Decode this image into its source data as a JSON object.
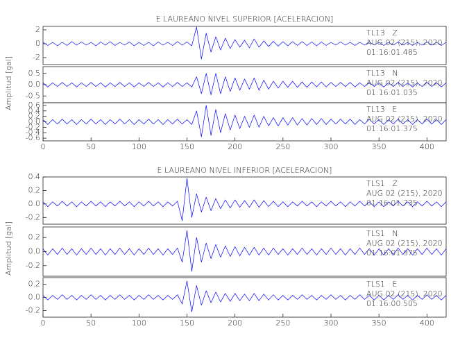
{
  "chart_data": [
    {
      "type": "line",
      "title": "E LAUREANO NIVEL SUPERIOR [ACELERACION]",
      "ylabel": "Amplitud [gal]",
      "xlim": [
        0,
        420
      ],
      "xticks": [
        0,
        50,
        100,
        150,
        200,
        250,
        300,
        350,
        400
      ],
      "x": [
        0,
        5,
        10,
        15,
        20,
        25,
        30,
        35,
        40,
        45,
        50,
        55,
        60,
        65,
        70,
        75,
        80,
        85,
        90,
        95,
        100,
        105,
        110,
        115,
        120,
        125,
        130,
        135,
        140,
        145,
        150,
        155,
        160,
        165,
        170,
        175,
        180,
        185,
        190,
        195,
        200,
        205,
        210,
        215,
        220,
        225,
        230,
        235,
        240,
        245,
        250,
        255,
        260,
        265,
        270,
        275,
        280,
        285,
        290,
        295,
        300,
        305,
        310,
        315,
        320,
        325,
        330,
        335,
        340,
        345,
        350,
        355,
        360,
        365,
        370,
        375,
        380,
        385,
        390,
        395,
        400,
        405,
        410,
        415,
        420
      ],
      "series": [
        {
          "name": "TL13   Z",
          "date": "AUG 02 (215), 2020",
          "time": "01:16:01.485",
          "color": "#0000ff",
          "ylim": [
            -3,
            2.5
          ],
          "yticks": [
            2,
            0,
            -2
          ],
          "values": [
            0.2,
            -0.25,
            0.2,
            -0.3,
            0.2,
            -0.25,
            0.3,
            -0.2,
            0.25,
            -0.2,
            0.2,
            -0.3,
            0.25,
            -0.2,
            0.3,
            -0.25,
            0.2,
            -0.2,
            0.25,
            -0.3,
            0.2,
            -0.25,
            0.2,
            -0.3,
            0.25,
            -0.2,
            0.2,
            -0.25,
            0.3,
            -0.2,
            0.25,
            -0.3,
            2.4,
            -2.2,
            1.5,
            -1.2,
            1.0,
            -0.9,
            0.8,
            -0.7,
            0.6,
            -0.5,
            0.5,
            -0.6,
            0.7,
            -0.5,
            0.4,
            -0.4,
            0.35,
            -0.35,
            0.3,
            -0.3,
            0.3,
            -0.25,
            0.3,
            -0.25,
            0.25,
            -0.3,
            0.25,
            -0.25,
            0.2,
            -0.2,
            0.25,
            -0.2,
            0.2,
            -0.25,
            0.2,
            -0.2,
            0.25,
            -0.2,
            0.2,
            -0.25,
            0.2,
            -0.2,
            0.25,
            -0.2,
            0.2,
            -0.25,
            0.2,
            -0.2,
            0.25,
            -0.2,
            0.2,
            -0.25,
            0.2
          ]
        },
        {
          "name": "TL13   N",
          "date": "AUG 02 (215), 2020",
          "time": "01:16:01.035",
          "color": "#0000ff",
          "ylim": [
            -0.8,
            0.8
          ],
          "yticks": [
            0.5,
            {
              "value": 0,
              "label": "0.0"
            },
            -0.5
          ],
          "values": [
            0.08,
            -0.1,
            0.08,
            -0.08,
            0.1,
            -0.08,
            0.08,
            -0.1,
            0.08,
            -0.08,
            0.1,
            -0.08,
            0.08,
            -0.1,
            0.08,
            -0.08,
            0.1,
            -0.08,
            0.08,
            -0.1,
            0.08,
            -0.08,
            0.1,
            -0.08,
            0.08,
            -0.1,
            0.08,
            -0.08,
            0.1,
            -0.08,
            0.08,
            -0.1,
            0.35,
            -0.4,
            0.5,
            -0.45,
            0.5,
            -0.4,
            0.35,
            -0.3,
            0.3,
            -0.25,
            0.25,
            -0.2,
            0.3,
            -0.25,
            0.2,
            -0.2,
            0.15,
            -0.15,
            0.15,
            -0.12,
            0.15,
            -0.12,
            0.12,
            -0.12,
            0.12,
            -0.1,
            0.12,
            -0.1,
            0.1,
            -0.08,
            0.1,
            -0.08,
            0.1,
            -0.1,
            0.08,
            -0.08,
            0.1,
            -0.08,
            0.08,
            -0.1,
            0.08,
            -0.08,
            0.1,
            -0.08,
            0.08,
            -0.1,
            0.08,
            -0.08,
            0.1,
            -0.08,
            0.08,
            -0.1,
            0.08
          ]
        },
        {
          "name": "TL13   E",
          "date": "AUG 02 (215), 2020",
          "time": "01:16:01.375",
          "color": "#0000ff",
          "ylim": [
            -0.7,
            0.7
          ],
          "yticks": [
            0.6,
            0.4,
            0.2,
            {
              "value": 0,
              "label": "0.0"
            },
            -0.2,
            -0.4,
            -0.6
          ],
          "values": [
            0.08,
            -0.1,
            0.08,
            -0.08,
            0.1,
            -0.08,
            0.08,
            -0.1,
            0.08,
            -0.08,
            0.1,
            -0.08,
            0.08,
            -0.1,
            0.08,
            -0.08,
            0.1,
            -0.08,
            0.08,
            -0.1,
            0.08,
            -0.08,
            0.1,
            -0.08,
            0.08,
            -0.1,
            0.08,
            -0.08,
            0.1,
            -0.08,
            0.08,
            -0.1,
            0.4,
            -0.55,
            0.6,
            -0.5,
            0.45,
            -0.4,
            0.3,
            -0.3,
            0.25,
            -0.25,
            0.2,
            -0.2,
            0.25,
            -0.2,
            0.2,
            -0.15,
            0.15,
            -0.15,
            0.15,
            -0.12,
            0.15,
            -0.12,
            0.12,
            -0.12,
            0.12,
            -0.1,
            0.12,
            -0.1,
            0.1,
            -0.08,
            0.1,
            -0.08,
            0.1,
            -0.1,
            0.08,
            -0.08,
            0.1,
            -0.08,
            0.08,
            -0.1,
            0.08,
            -0.08,
            0.1,
            -0.08,
            0.08,
            -0.1,
            0.08,
            -0.08,
            0.1,
            -0.08,
            0.08,
            -0.1,
            0.08
          ]
        }
      ]
    },
    {
      "type": "line",
      "title": "E LAUREANO NIVEL INFERIOR [ACELERACION]",
      "ylabel": "Amplitud [gal]",
      "xlim": [
        0,
        420
      ],
      "xticks": [
        0,
        50,
        100,
        150,
        200,
        250,
        300,
        350,
        400
      ],
      "x": [
        0,
        5,
        10,
        15,
        20,
        25,
        30,
        35,
        40,
        45,
        50,
        55,
        60,
        65,
        70,
        75,
        80,
        85,
        90,
        95,
        100,
        105,
        110,
        115,
        120,
        125,
        130,
        135,
        140,
        145,
        150,
        155,
        160,
        165,
        170,
        175,
        180,
        185,
        190,
        195,
        200,
        205,
        210,
        215,
        220,
        225,
        230,
        235,
        240,
        245,
        250,
        255,
        260,
        265,
        270,
        275,
        280,
        285,
        290,
        295,
        300,
        305,
        310,
        315,
        320,
        325,
        330,
        335,
        340,
        345,
        350,
        355,
        360,
        365,
        370,
        375,
        380,
        385,
        390,
        395,
        400,
        405,
        410,
        415,
        420
      ],
      "series": [
        {
          "name": "TLS1   Z",
          "date": "AUG 02 (215), 2020",
          "time": "01:16:01.735",
          "color": "#0000ff",
          "ylim": [
            -0.3,
            0.4
          ],
          "yticks": [
            0.4,
            0.2,
            {
              "value": 0,
              "label": "0.0"
            },
            -0.2
          ],
          "values": [
            0.03,
            -0.04,
            0.03,
            -0.03,
            0.04,
            -0.03,
            0.03,
            -0.04,
            0.03,
            -0.03,
            0.04,
            -0.03,
            0.03,
            -0.04,
            0.03,
            -0.03,
            0.04,
            -0.03,
            0.03,
            -0.04,
            0.03,
            -0.03,
            0.04,
            -0.03,
            0.03,
            -0.04,
            0.03,
            -0.03,
            0.04,
            -0.25,
            0.38,
            -0.2,
            0.15,
            -0.12,
            0.1,
            -0.1,
            0.08,
            -0.07,
            0.06,
            -0.06,
            0.06,
            -0.05,
            0.05,
            -0.05,
            0.06,
            -0.05,
            0.05,
            -0.04,
            0.04,
            -0.04,
            0.03,
            -0.04,
            0.03,
            -0.03,
            0.04,
            -0.03,
            0.03,
            -0.04,
            0.03,
            -0.03,
            0.04,
            -0.03,
            0.03,
            -0.04,
            0.03,
            -0.03,
            0.04,
            -0.03,
            0.03,
            -0.04,
            0.03,
            -0.04,
            0.03,
            -0.03,
            0.04,
            -0.03,
            0.03,
            -0.04,
            0.03,
            -0.03,
            0.04,
            -0.03,
            0.03,
            -0.04,
            0.03
          ]
        },
        {
          "name": "TLS1   N",
          "date": "AUG 02 (215), 2020",
          "time": "01:16:01.975",
          "color": "#0000ff",
          "ylim": [
            -0.35,
            0.35
          ],
          "yticks": [
            0.2,
            {
              "value": 0,
              "label": "0.0"
            },
            -0.2
          ],
          "values": [
            0.04,
            -0.05,
            0.04,
            -0.04,
            0.05,
            -0.04,
            0.04,
            -0.05,
            0.04,
            -0.04,
            0.05,
            -0.04,
            0.04,
            -0.05,
            0.04,
            -0.04,
            0.05,
            -0.04,
            0.04,
            -0.05,
            0.04,
            -0.04,
            0.05,
            -0.04,
            0.04,
            -0.05,
            0.04,
            -0.04,
            0.05,
            -0.15,
            0.3,
            -0.28,
            0.2,
            -0.15,
            0.12,
            -0.1,
            0.1,
            -0.08,
            0.08,
            -0.07,
            0.07,
            -0.06,
            0.06,
            -0.05,
            0.06,
            -0.05,
            0.05,
            -0.05,
            0.05,
            -0.04,
            0.04,
            -0.05,
            0.04,
            -0.04,
            0.05,
            -0.04,
            0.04,
            -0.05,
            0.04,
            -0.04,
            0.05,
            -0.04,
            0.04,
            -0.05,
            0.04,
            -0.04,
            0.05,
            -0.04,
            0.04,
            -0.05,
            0.04,
            -0.05,
            0.04,
            -0.04,
            0.05,
            -0.04,
            0.04,
            -0.05,
            0.04,
            -0.04,
            0.05,
            -0.04,
            0.04,
            -0.05,
            0.04
          ]
        },
        {
          "name": "TLS1   E",
          "date": "AUG 02 (215), 2020",
          "time": "01:16:00.505",
          "color": "#0000ff",
          "ylim": [
            -0.3,
            0.3
          ],
          "yticks": [
            0.2,
            {
              "value": 0,
              "label": "0.0"
            },
            -0.2
          ],
          "values": [
            0.03,
            -0.04,
            0.03,
            -0.03,
            0.04,
            -0.03,
            0.03,
            -0.04,
            0.03,
            -0.03,
            0.04,
            -0.03,
            0.03,
            -0.04,
            0.03,
            -0.03,
            0.04,
            -0.03,
            0.03,
            -0.04,
            0.03,
            -0.03,
            0.04,
            -0.03,
            0.03,
            -0.04,
            0.03,
            -0.03,
            0.04,
            -0.1,
            0.25,
            -0.22,
            0.18,
            -0.12,
            0.1,
            -0.08,
            0.08,
            -0.07,
            0.06,
            -0.06,
            0.06,
            -0.05,
            0.05,
            -0.05,
            0.06,
            -0.05,
            0.05,
            -0.04,
            0.04,
            -0.04,
            0.03,
            -0.04,
            0.03,
            -0.03,
            0.04,
            -0.03,
            0.03,
            -0.04,
            0.03,
            -0.03,
            0.04,
            -0.03,
            0.03,
            -0.04,
            0.03,
            -0.03,
            0.04,
            -0.03,
            0.03,
            -0.04,
            0.03,
            -0.04,
            0.03,
            -0.03,
            0.04,
            -0.03,
            0.03,
            -0.04,
            0.03,
            -0.03,
            0.04,
            -0.03,
            0.03,
            -0.04,
            0.03
          ]
        }
      ]
    }
  ]
}
